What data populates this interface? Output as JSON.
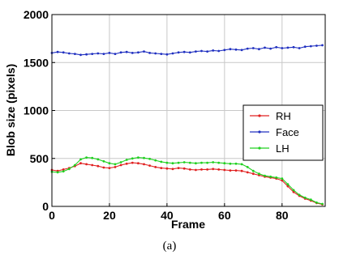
{
  "caption": "(a)",
  "chart_data": {
    "type": "line",
    "xlabel": "Frame",
    "ylabel": "Blob size (pixels)",
    "xlim": [
      0,
      95
    ],
    "ylim": [
      0,
      2000
    ],
    "xticks": [
      0,
      20,
      40,
      60,
      80
    ],
    "yticks": [
      0,
      500,
      1000,
      1500,
      2000
    ],
    "grid": true,
    "legend_position": "right",
    "x": [
      0,
      2,
      4,
      6,
      8,
      10,
      12,
      14,
      16,
      18,
      20,
      22,
      24,
      26,
      28,
      30,
      32,
      34,
      36,
      38,
      40,
      42,
      44,
      46,
      48,
      50,
      52,
      54,
      56,
      58,
      60,
      62,
      64,
      66,
      68,
      70,
      72,
      74,
      76,
      78,
      80,
      82,
      84,
      86,
      88,
      90,
      92,
      94
    ],
    "series": [
      {
        "name": "RH",
        "color": "#e02020",
        "values": [
          380,
          370,
          385,
          400,
          420,
          450,
          440,
          430,
          420,
          405,
          400,
          410,
          430,
          445,
          455,
          450,
          440,
          425,
          410,
          400,
          395,
          390,
          400,
          395,
          385,
          380,
          385,
          385,
          390,
          385,
          380,
          375,
          375,
          370,
          355,
          340,
          325,
          310,
          300,
          290,
          270,
          210,
          150,
          110,
          80,
          60,
          35,
          20
        ]
      },
      {
        "name": "Face",
        "color": "#2030c0",
        "values": [
          1600,
          1610,
          1605,
          1595,
          1590,
          1580,
          1585,
          1590,
          1595,
          1590,
          1600,
          1590,
          1605,
          1610,
          1600,
          1605,
          1615,
          1600,
          1595,
          1590,
          1585,
          1595,
          1605,
          1610,
          1605,
          1615,
          1620,
          1615,
          1625,
          1620,
          1630,
          1640,
          1635,
          1630,
          1645,
          1650,
          1640,
          1655,
          1645,
          1660,
          1650,
          1655,
          1660,
          1650,
          1665,
          1670,
          1675,
          1680
        ]
      },
      {
        "name": "LH",
        "color": "#20d020",
        "values": [
          360,
          355,
          365,
          390,
          430,
          490,
          510,
          505,
          490,
          470,
          450,
          440,
          460,
          485,
          500,
          510,
          505,
          495,
          480,
          465,
          455,
          450,
          455,
          460,
          455,
          450,
          455,
          455,
          460,
          455,
          450,
          445,
          445,
          440,
          410,
          370,
          340,
          320,
          310,
          300,
          290,
          230,
          170,
          120,
          90,
          70,
          40,
          25
        ]
      }
    ]
  }
}
